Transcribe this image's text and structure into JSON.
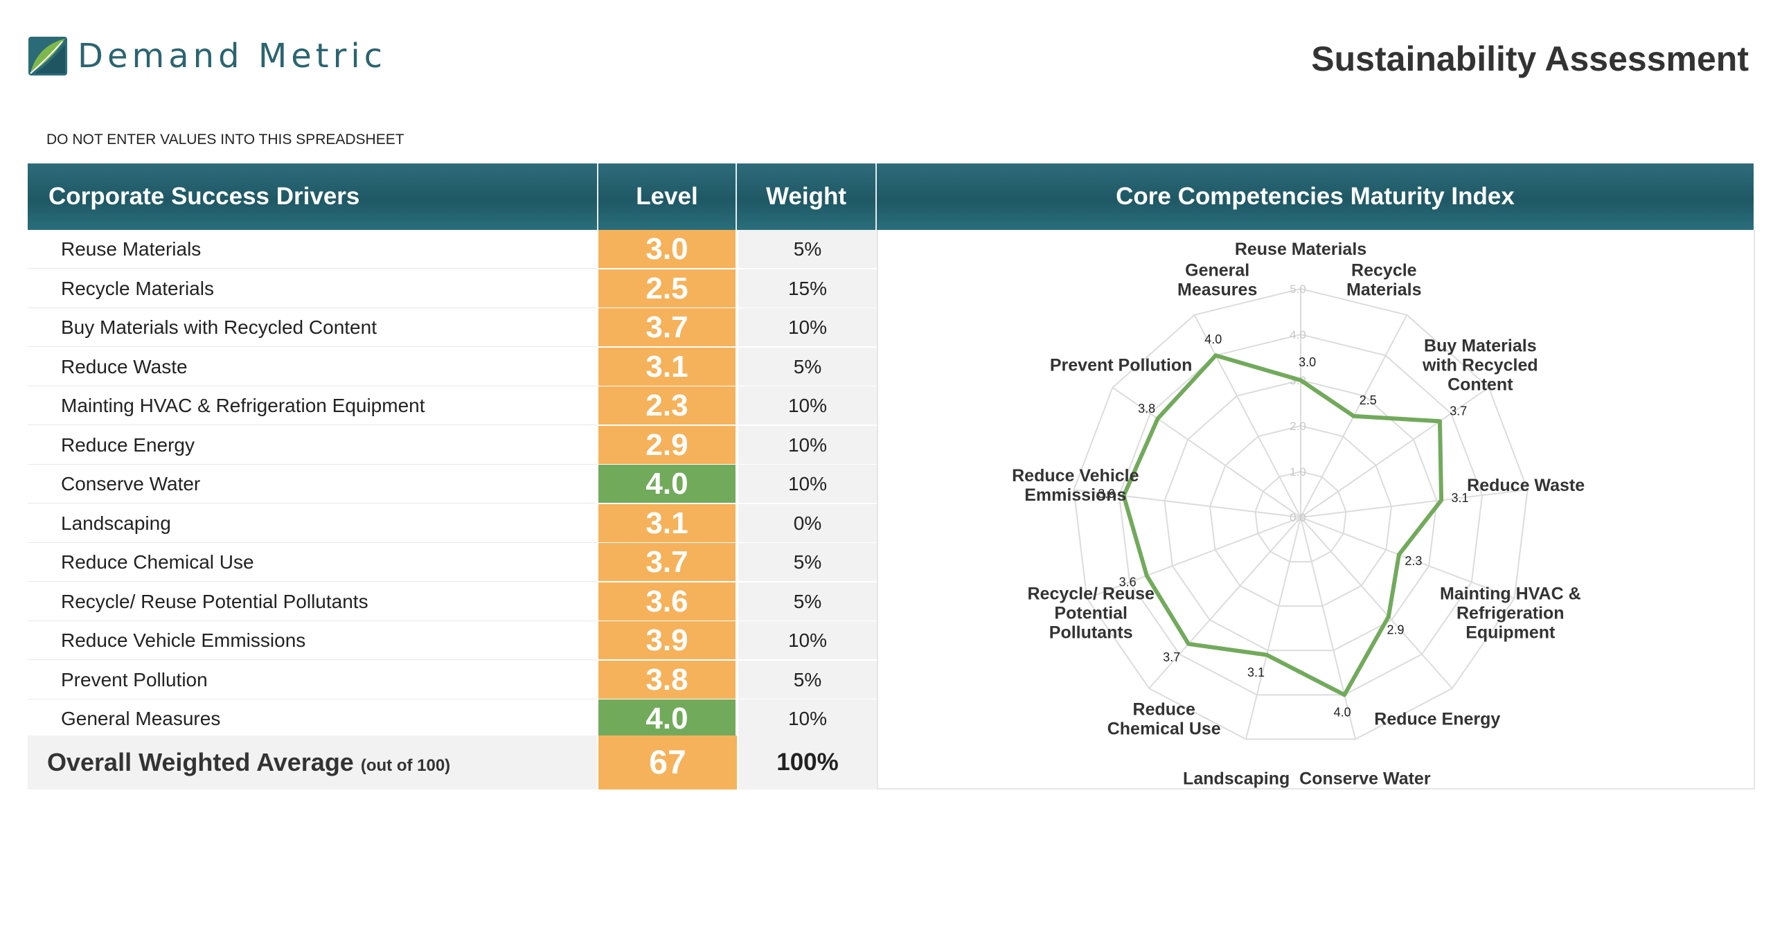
{
  "brand": {
    "name": "Demand Metric"
  },
  "page": {
    "title": "Sustainability Assessment",
    "warning": "DO NOT ENTER VALUES INTO THIS SPREADSHEET"
  },
  "table": {
    "headers": {
      "driver": "Corporate Success Drivers",
      "level": "Level",
      "weight": "Weight",
      "chart": "Core Competencies Maturity Index"
    },
    "rows": [
      {
        "name": "Reuse Materials",
        "level": "3.0",
        "weight": "5%",
        "status": "orange"
      },
      {
        "name": "Recycle Materials",
        "level": "2.5",
        "weight": "15%",
        "status": "orange"
      },
      {
        "name": "Buy Materials with Recycled Content",
        "level": "3.7",
        "weight": "10%",
        "status": "orange"
      },
      {
        "name": "Reduce Waste",
        "level": "3.1",
        "weight": "5%",
        "status": "orange"
      },
      {
        "name": "Mainting HVAC & Refrigeration Equipment",
        "level": "2.3",
        "weight": "10%",
        "status": "orange"
      },
      {
        "name": "Reduce Energy",
        "level": "2.9",
        "weight": "10%",
        "status": "orange"
      },
      {
        "name": "Conserve Water",
        "level": "4.0",
        "weight": "10%",
        "status": "green"
      },
      {
        "name": "Landscaping",
        "level": "3.1",
        "weight": "0%",
        "status": "orange"
      },
      {
        "name": "Reduce Chemical Use",
        "level": "3.7",
        "weight": "5%",
        "status": "orange"
      },
      {
        "name": "Recycle/ Reuse Potential Pollutants",
        "level": "3.6",
        "weight": "5%",
        "status": "orange"
      },
      {
        "name": "Reduce Vehicle Emmissions",
        "level": "3.9",
        "weight": "10%",
        "status": "orange"
      },
      {
        "name": "Prevent Pollution",
        "level": "3.8",
        "weight": "5%",
        "status": "orange"
      },
      {
        "name": "General Measures",
        "level": "4.0",
        "weight": "10%",
        "status": "green"
      }
    ],
    "overall": {
      "label": "Overall Weighted Average",
      "sublabel": "(out of 100)",
      "level": "67",
      "weight": "100%"
    }
  },
  "colors": {
    "orange": "#f5b25b",
    "green": "#72aa5c",
    "header_teal": "#22606d",
    "series_line": "#72aa5c"
  },
  "chart_data": {
    "type": "radar",
    "title": "Core Competencies Maturity Index",
    "categories": [
      [
        "Reuse Materials"
      ],
      [
        "Recycle",
        "Materials"
      ],
      [
        "Buy Materials",
        "with Recycled",
        "Content"
      ],
      [
        "Reduce Waste"
      ],
      [
        "Mainting HVAC &",
        "Refrigeration",
        "Equipment"
      ],
      [
        "Reduce Energy"
      ],
      [
        "Conserve Water"
      ],
      [
        "Landscaping"
      ],
      [
        "Reduce",
        "Chemical Use"
      ],
      [
        "Recycle/ Reuse",
        "Potential",
        "Pollutants"
      ],
      [
        "Reduce Vehicle",
        "Emmissions"
      ],
      [
        "Prevent Pollution"
      ],
      [
        "General",
        "Measures"
      ]
    ],
    "values": [
      3.0,
      2.5,
      3.7,
      3.1,
      2.3,
      2.9,
      4.0,
      3.1,
      3.7,
      3.6,
      3.9,
      3.8,
      4.0
    ],
    "value_labels": [
      "3.0",
      "2.5",
      "3.7",
      "3.1",
      "2.3",
      "2.9",
      "4.0",
      "3.1",
      "3.7",
      "3.6",
      "3.9",
      "3.8",
      "4.0"
    ],
    "rlim": [
      0,
      5
    ],
    "rticks": [
      "0.0",
      "1.0",
      "2.0",
      "3.0",
      "4.0",
      "5.0"
    ],
    "grid": true,
    "legend": "none"
  }
}
